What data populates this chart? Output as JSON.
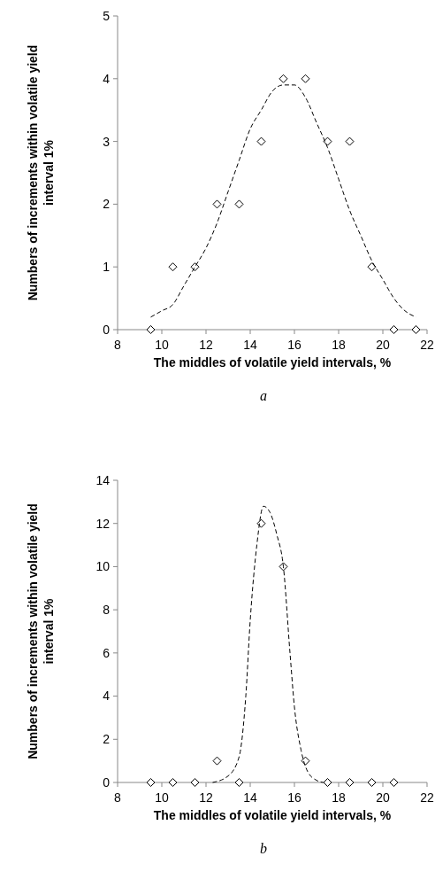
{
  "chart_data": [
    {
      "type": "scatter",
      "xlabel": "The middles of volatile yield intervals, %",
      "ylabel": "Numbers of increments within volatile yield interval 1%",
      "xlim": [
        8,
        22
      ],
      "xticks": [
        8,
        10,
        12,
        14,
        16,
        18,
        20,
        22
      ],
      "ylim": [
        0,
        5
      ],
      "yticks": [
        0,
        1,
        2,
        3,
        4,
        5
      ],
      "grid": false,
      "annotations": [
        "a"
      ],
      "series": [
        {
          "color": "#000000",
          "marker": "diamond",
          "x": [
            9.5,
            10.5,
            11.5,
            12.5,
            13.5,
            14.5,
            15.5,
            16.5,
            17.5,
            18.5,
            19.5,
            20.5,
            21.5
          ],
          "values": [
            0,
            1,
            1,
            2,
            2,
            3,
            4,
            4,
            3,
            3,
            1,
            0,
            0
          ]
        },
        {
          "type": "line",
          "color": "#000000",
          "marker": "none",
          "line_style": "dashed",
          "x": [
            9.5,
            10,
            10.5,
            11,
            11.5,
            12,
            12.5,
            13,
            13.5,
            14,
            14.5,
            15,
            15.5,
            16,
            16.5,
            17,
            17.5,
            18,
            18.5,
            19,
            19.5,
            20,
            20.5,
            21,
            21.5
          ],
          "values": [
            0.2,
            0.3,
            0.4,
            0.7,
            1.0,
            1.3,
            1.7,
            2.2,
            2.7,
            3.2,
            3.5,
            3.8,
            3.9,
            3.9,
            3.7,
            3.3,
            2.9,
            2.4,
            1.9,
            1.5,
            1.1,
            0.8,
            0.5,
            0.3,
            0.2
          ]
        }
      ]
    },
    {
      "type": "scatter",
      "xlabel": "The middles of volatile yield intervals, %",
      "ylabel": "Numbers of increments within volatile yield interval 1%",
      "xlim": [
        8,
        22
      ],
      "xticks": [
        8,
        10,
        12,
        14,
        16,
        18,
        20,
        22
      ],
      "ylim": [
        0,
        14
      ],
      "yticks": [
        0,
        2,
        4,
        6,
        8,
        10,
        12,
        14
      ],
      "grid": false,
      "annotations": [
        "b"
      ],
      "series": [
        {
          "color": "#000000",
          "marker": "diamond",
          "x": [
            9.5,
            10.5,
            11.5,
            12.5,
            13.5,
            14.5,
            15.5,
            16.5,
            17.5,
            18.5,
            19.5,
            20.5
          ],
          "values": [
            0,
            0,
            0,
            1,
            0,
            12,
            10,
            1,
            0,
            0,
            0,
            0
          ]
        },
        {
          "type": "line",
          "color": "#000000",
          "marker": "none",
          "line_style": "dashed",
          "x": [
            12.3,
            13,
            13.5,
            13.8,
            14,
            14.3,
            14.6,
            14.9,
            15.2,
            15.5,
            15.8,
            16,
            16.3,
            16.6,
            17,
            17.3
          ],
          "values": [
            0,
            0.3,
            1.2,
            4,
            7.5,
            11,
            12.8,
            12.5,
            11.5,
            10,
            6,
            3.5,
            1.5,
            0.5,
            0.1,
            0
          ]
        }
      ]
    }
  ]
}
